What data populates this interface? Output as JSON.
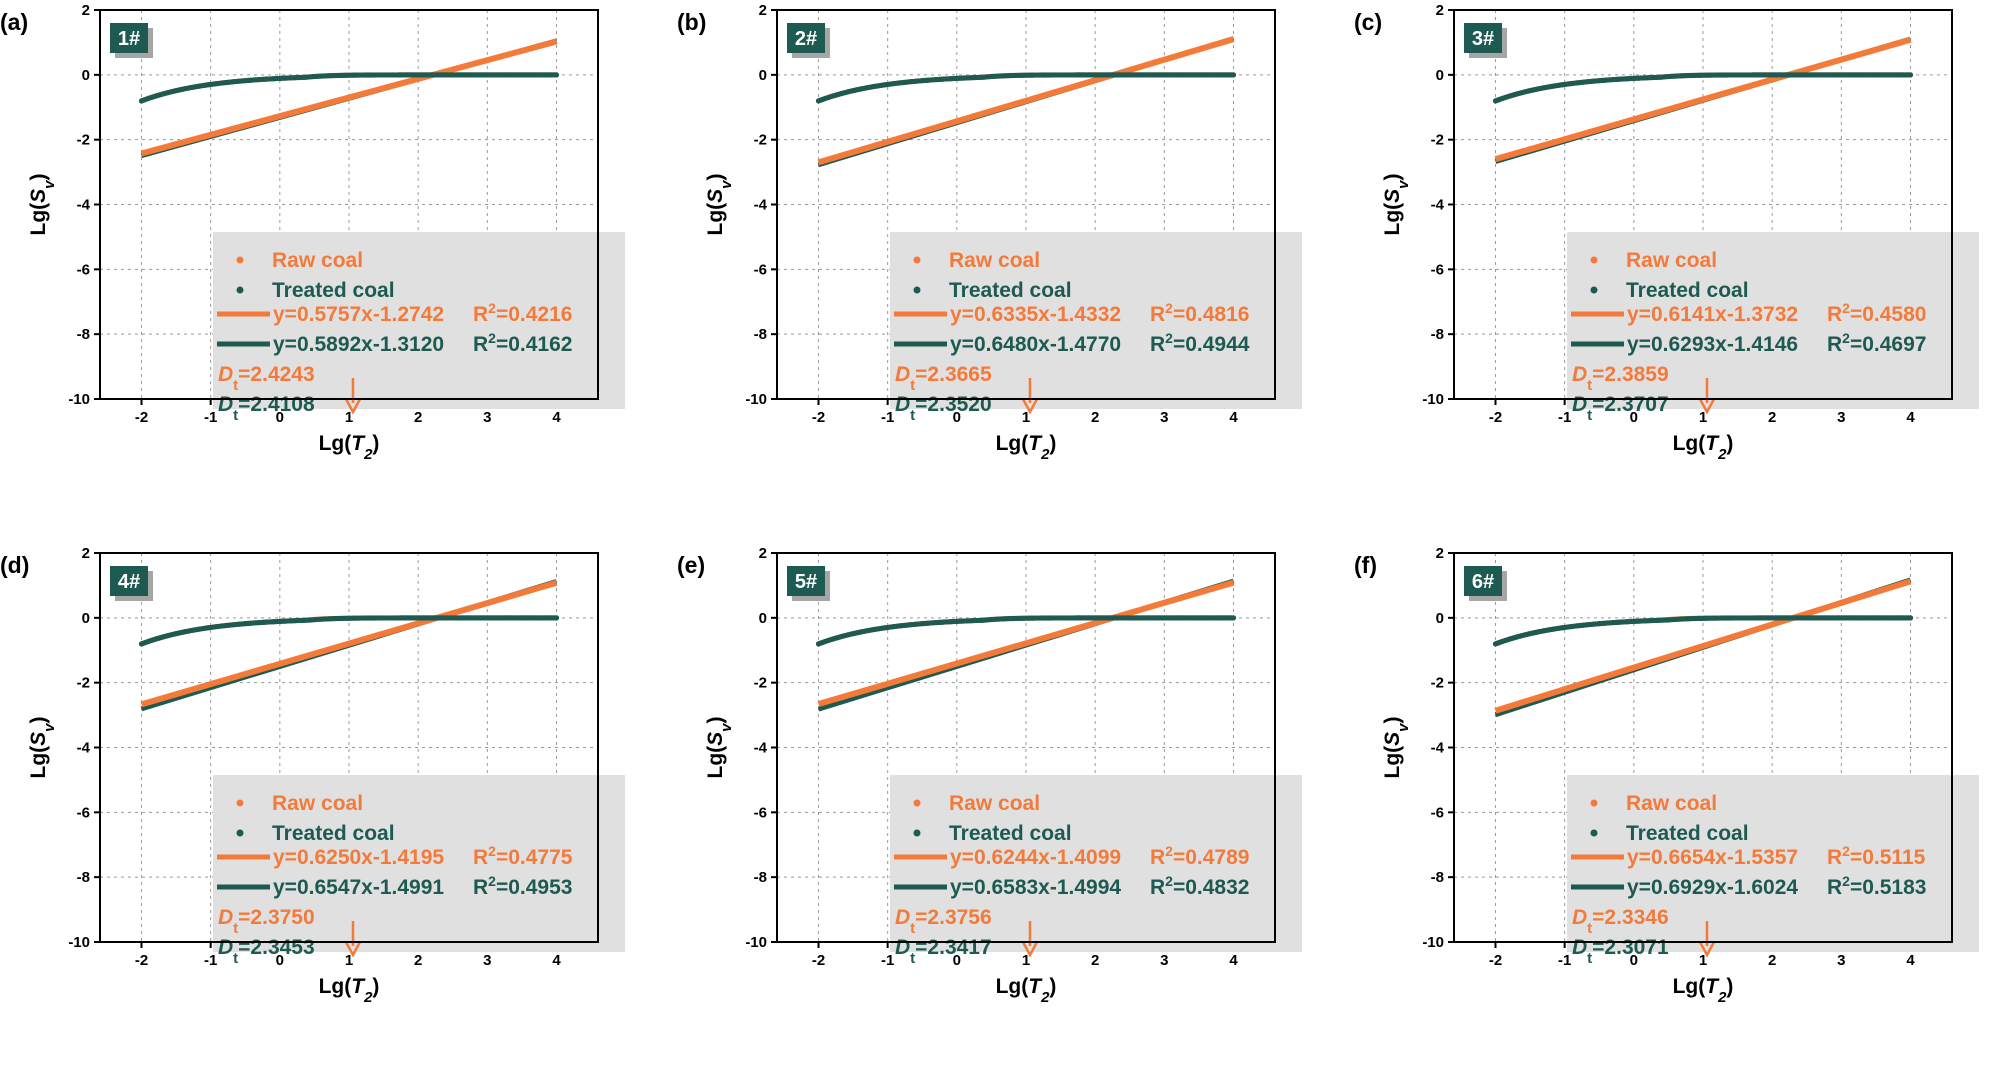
{
  "figure_colors": {
    "raw": "#F47A3A",
    "treated": "#1D5A52",
    "legend_bg": "#E0E0E0",
    "badge_bg": "#1D5A52",
    "badge_shadow": "#A6A6A6"
  },
  "chart_data": [
    {
      "type": "scatter",
      "panel_label": "(a)",
      "sample": "1#",
      "xlabel": "Lg(T2)",
      "ylabel": "Lg(Sv)",
      "xlim": [
        -2.6,
        4.6
      ],
      "ylim": [
        -10,
        2
      ],
      "xticks": [
        -2,
        -1,
        0,
        1,
        2,
        3,
        4
      ],
      "yticks": [
        -10,
        -8,
        -6,
        -4,
        -2,
        0,
        2
      ],
      "legend": {
        "raw": "Raw coal",
        "treated": "Treated coal"
      },
      "series": [
        {
          "name": "Raw coal",
          "fit_label": "y=0.5757x-1.2742",
          "r2_label": "R",
          "r2_value": "=0.4216",
          "slope": 0.5757,
          "intercept": -1.2742,
          "dt_value": "=2.4243",
          "curve": {
            "shift": 1.345,
            "bottom": -8.0
          }
        },
        {
          "name": "Treated coal",
          "fit_label": "y=0.5892x-1.3120",
          "r2_label": "R",
          "r2_value": "=0.4162",
          "slope": 0.5892,
          "intercept": -1.312,
          "dt_value": "=2.4108",
          "curve": {
            "shift": 1.33,
            "bottom": -8.05
          }
        }
      ]
    },
    {
      "type": "scatter",
      "panel_label": "(b)",
      "sample": "2#",
      "xlabel": "Lg(T2)",
      "ylabel": "Lg(Sv)",
      "xlim": [
        -2.6,
        4.6
      ],
      "ylim": [
        -10,
        2
      ],
      "xticks": [
        -2,
        -1,
        0,
        1,
        2,
        3,
        4
      ],
      "yticks": [
        -10,
        -8,
        -6,
        -4,
        -2,
        0,
        2
      ],
      "legend": {
        "raw": "Raw coal",
        "treated": "Treated coal"
      },
      "series": [
        {
          "name": "Raw coal",
          "fit_label": "y=0.6335x-1.4332",
          "r2_label": "R",
          "r2_value": "=0.4816",
          "slope": 0.6335,
          "intercept": -1.4332,
          "dt_value": "=2.3665",
          "curve": {
            "shift": 1.36,
            "bottom": -8.05
          }
        },
        {
          "name": "Treated coal",
          "fit_label": "y=0.6480x-1.4770",
          "r2_label": "R",
          "r2_value": "=0.4944",
          "slope": 0.648,
          "intercept": -1.477,
          "dt_value": "=2.3520",
          "curve": {
            "shift": 1.33,
            "bottom": -8.1
          }
        }
      ]
    },
    {
      "type": "scatter",
      "panel_label": "(c)",
      "sample": "3#",
      "xlabel": "Lg(T2)",
      "ylabel": "Lg(Sv)",
      "xlim": [
        -2.6,
        4.6
      ],
      "ylim": [
        -10,
        2
      ],
      "xticks": [
        -2,
        -1,
        0,
        1,
        2,
        3,
        4
      ],
      "yticks": [
        -10,
        -8,
        -6,
        -4,
        -2,
        0,
        2
      ],
      "legend": {
        "raw": "Raw coal",
        "treated": "Treated coal"
      },
      "series": [
        {
          "name": "Raw coal",
          "fit_label": "y=0.6141x-1.3732",
          "r2_label": "R",
          "r2_value": "=0.4580",
          "slope": 0.6141,
          "intercept": -1.3732,
          "dt_value": "=2.3859",
          "curve": {
            "shift": 1.35,
            "bottom": -8.05
          }
        },
        {
          "name": "Treated coal",
          "fit_label": "y=0.6293x-1.4146",
          "r2_label": "R",
          "r2_value": "=0.4697",
          "slope": 0.6293,
          "intercept": -1.4146,
          "dt_value": "=2.3707",
          "curve": {
            "shift": 1.33,
            "bottom": -8.15
          }
        }
      ]
    },
    {
      "type": "scatter",
      "panel_label": "(d)",
      "sample": "4#",
      "xlabel": "Lg(T2)",
      "ylabel": "Lg(Sv)",
      "xlim": [
        -2.6,
        4.6
      ],
      "ylim": [
        -10,
        2
      ],
      "xticks": [
        -2,
        -1,
        0,
        1,
        2,
        3,
        4
      ],
      "yticks": [
        -10,
        -8,
        -6,
        -4,
        -2,
        0,
        2
      ],
      "legend": {
        "raw": "Raw coal",
        "treated": "Treated coal"
      },
      "series": [
        {
          "name": "Raw coal",
          "fit_label": "y=0.6250x-1.4195",
          "r2_label": "R",
          "r2_value": "=0.4775",
          "slope": 0.625,
          "intercept": -1.4195,
          "dt_value": "=2.3750",
          "curve": {
            "shift": 1.36,
            "bottom": -8.05
          }
        },
        {
          "name": "Treated coal",
          "fit_label": "y=0.6547x-1.4991",
          "r2_label": "R",
          "r2_value": "=0.4953",
          "slope": 0.6547,
          "intercept": -1.4991,
          "dt_value": "=2.3453",
          "curve": {
            "shift": 1.3,
            "bottom": -8.1
          }
        }
      ]
    },
    {
      "type": "scatter",
      "panel_label": "(e)",
      "sample": "5#",
      "xlabel": "Lg(T2)",
      "ylabel": "Lg(Sv)",
      "xlim": [
        -2.6,
        4.6
      ],
      "ylim": [
        -10,
        2
      ],
      "xticks": [
        -2,
        -1,
        0,
        1,
        2,
        3,
        4
      ],
      "yticks": [
        -10,
        -8,
        -6,
        -4,
        -2,
        0,
        2
      ],
      "legend": {
        "raw": "Raw coal",
        "treated": "Treated coal"
      },
      "series": [
        {
          "name": "Raw coal",
          "fit_label": "y=0.6244x-1.4099",
          "r2_label": "R",
          "r2_value": "=0.4789",
          "slope": 0.6244,
          "intercept": -1.4099,
          "dt_value": "=2.3756",
          "curve": {
            "shift": 1.36,
            "bottom": -8.1
          }
        },
        {
          "name": "Treated coal",
          "fit_label": "y=0.6583x-1.4994",
          "r2_label": "R",
          "r2_value": "=0.4832",
          "slope": 0.6583,
          "intercept": -1.4994,
          "dt_value": "=2.3417",
          "curve": {
            "shift": 1.33,
            "bottom": -8.15
          }
        }
      ]
    },
    {
      "type": "scatter",
      "panel_label": "(f)",
      "sample": "6#",
      "xlabel": "Lg(T2)",
      "ylabel": "Lg(Sv)",
      "xlim": [
        -2.6,
        4.6
      ],
      "ylim": [
        -10,
        2
      ],
      "xticks": [
        -2,
        -1,
        0,
        1,
        2,
        3,
        4
      ],
      "yticks": [
        -10,
        -8,
        -6,
        -4,
        -2,
        0,
        2
      ],
      "legend": {
        "raw": "Raw coal",
        "treated": "Treated coal"
      },
      "series": [
        {
          "name": "Raw coal",
          "fit_label": "y=0.6654x-1.5357",
          "r2_label": "R",
          "r2_value": "=0.5115",
          "slope": 0.6654,
          "intercept": -1.5357,
          "dt_value": "=2.3346",
          "curve": {
            "shift": 1.35,
            "bottom": -8.05
          }
        },
        {
          "name": "Treated coal",
          "fit_label": "y=0.6929x-1.6024",
          "r2_label": "R",
          "r2_value": "=0.5183",
          "slope": 0.6929,
          "intercept": -1.6024,
          "dt_value": "=2.3071",
          "curve": {
            "shift": 1.25,
            "bottom": -8.15
          }
        }
      ]
    }
  ]
}
